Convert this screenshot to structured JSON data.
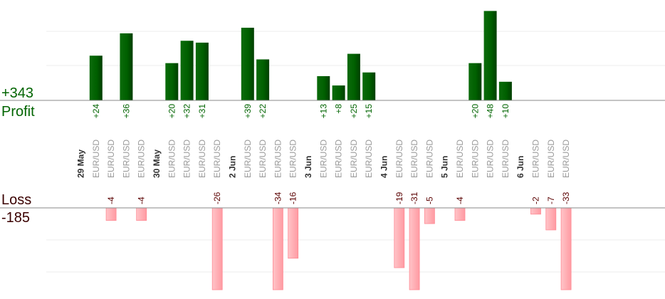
{
  "chart_data": {
    "type": "bar",
    "profit": {
      "total_label": "+343",
      "title": "Profit",
      "color": "#006400",
      "scale_max": 60
    },
    "loss": {
      "title": "Loss",
      "total_label": "-185",
      "color": "#ffb3b8",
      "scale_max": 26
    },
    "dates": [
      "29 May",
      "30 May",
      "2 Jun",
      "3 Jun",
      "4 Jun",
      "5 Jun",
      "6 Jun"
    ],
    "columns": [
      {
        "kind": "date",
        "label": "29 May"
      },
      {
        "kind": "trade",
        "symbol": "EUR/USD",
        "value": 24,
        "label": "+24"
      },
      {
        "kind": "trade",
        "symbol": "EUR/USD",
        "value": -4,
        "label": "-4"
      },
      {
        "kind": "trade",
        "symbol": "EUR/USD",
        "value": 36,
        "label": "+36"
      },
      {
        "kind": "trade",
        "symbol": "EUR/USD",
        "value": -4,
        "label": "-4"
      },
      {
        "kind": "date",
        "label": "30 May"
      },
      {
        "kind": "trade",
        "symbol": "EUR/USD",
        "value": 20,
        "label": "+20"
      },
      {
        "kind": "trade",
        "symbol": "EUR/USD",
        "value": 32,
        "label": "+32"
      },
      {
        "kind": "trade",
        "symbol": "EUR/USD",
        "value": 31,
        "label": "+31"
      },
      {
        "kind": "trade",
        "symbol": "EUR/USD",
        "value": -26,
        "label": "-26"
      },
      {
        "kind": "date",
        "label": "2 Jun"
      },
      {
        "kind": "trade",
        "symbol": "EUR/USD",
        "value": 39,
        "label": "+39"
      },
      {
        "kind": "trade",
        "symbol": "EUR/USD",
        "value": 22,
        "label": "+22"
      },
      {
        "kind": "trade",
        "symbol": "EUR/USD",
        "value": -34,
        "label": "-34"
      },
      {
        "kind": "trade",
        "symbol": "EUR/USD",
        "value": -16,
        "label": "-16"
      },
      {
        "kind": "date",
        "label": "3 Jun"
      },
      {
        "kind": "trade",
        "symbol": "EUR/USD",
        "value": 13,
        "label": "+13"
      },
      {
        "kind": "trade",
        "symbol": "EUR/USD",
        "value": 8,
        "label": "+8"
      },
      {
        "kind": "trade",
        "symbol": "EUR/USD",
        "value": 25,
        "label": "+25"
      },
      {
        "kind": "trade",
        "symbol": "EUR/USD",
        "value": 15,
        "label": "+15"
      },
      {
        "kind": "date",
        "label": "4 Jun"
      },
      {
        "kind": "trade",
        "symbol": "EUR/USD",
        "value": -19,
        "label": "-19"
      },
      {
        "kind": "trade",
        "symbol": "EUR/USD",
        "value": -31,
        "label": "-31"
      },
      {
        "kind": "trade",
        "symbol": "EUR/USD",
        "value": -5,
        "label": "-5"
      },
      {
        "kind": "date",
        "label": "5 Jun"
      },
      {
        "kind": "trade",
        "symbol": "EUR/USD",
        "value": -4,
        "label": "-4"
      },
      {
        "kind": "trade",
        "symbol": "EUR/USD",
        "value": 20,
        "label": "+20"
      },
      {
        "kind": "trade",
        "symbol": "EUR/USD",
        "value": 48,
        "label": "+48"
      },
      {
        "kind": "trade",
        "symbol": "EUR/USD",
        "value": 10,
        "label": "+10"
      },
      {
        "kind": "date",
        "label": "6 Jun"
      },
      {
        "kind": "trade",
        "symbol": "EUR/USD",
        "value": -2,
        "label": "-2"
      },
      {
        "kind": "trade",
        "symbol": "EUR/USD",
        "value": -7,
        "label": "-7"
      },
      {
        "kind": "trade",
        "symbol": "EUR/USD",
        "value": -33,
        "label": "-33"
      }
    ]
  }
}
